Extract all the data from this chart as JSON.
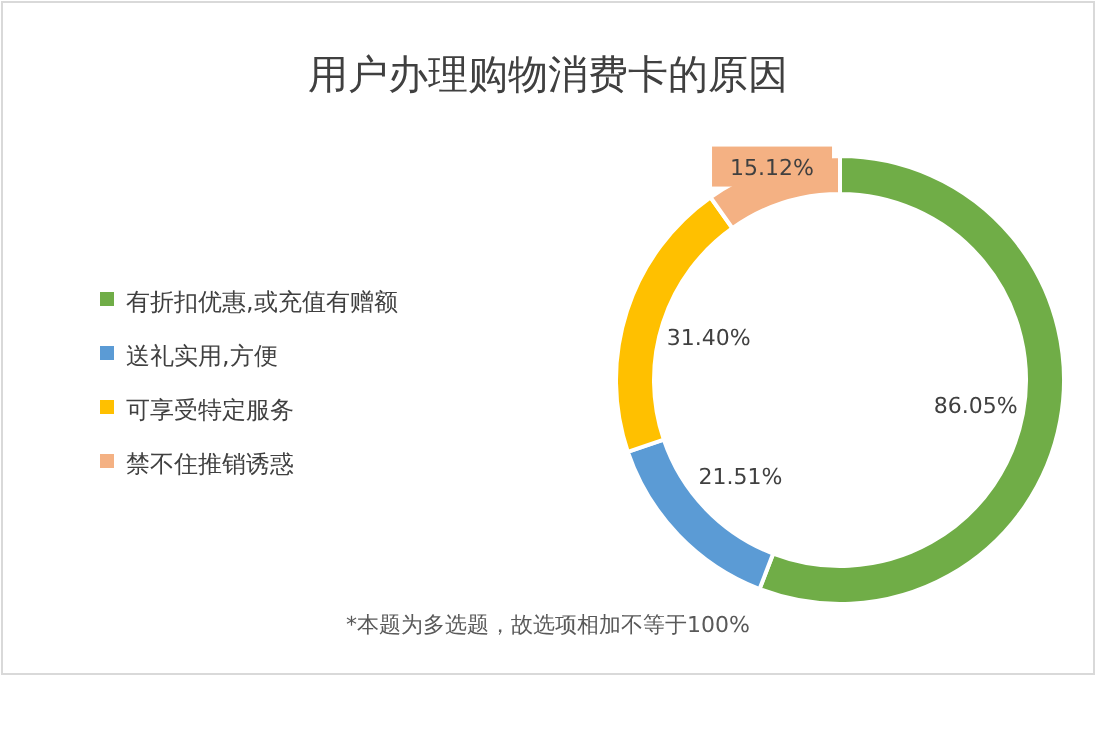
{
  "chart_data": {
    "type": "donut",
    "title": "用户办理购物消费卡的原因",
    "categories": [
      "有折扣优惠,或充值有赠额",
      "送礼实用,方便",
      "可享受特定服务",
      "禁不住推销诱惑"
    ],
    "values": [
      86.05,
      21.51,
      31.4,
      15.12
    ],
    "value_labels": [
      "86.05%",
      "21.51%",
      "31.40%",
      "15.12%"
    ],
    "colors": [
      "#70ad47",
      "#5b9bd5",
      "#ffc000",
      "#f4b183"
    ],
    "legend": "left",
    "annotations": [
      "*本题为多选题，故选项相加不等于100%"
    ]
  }
}
